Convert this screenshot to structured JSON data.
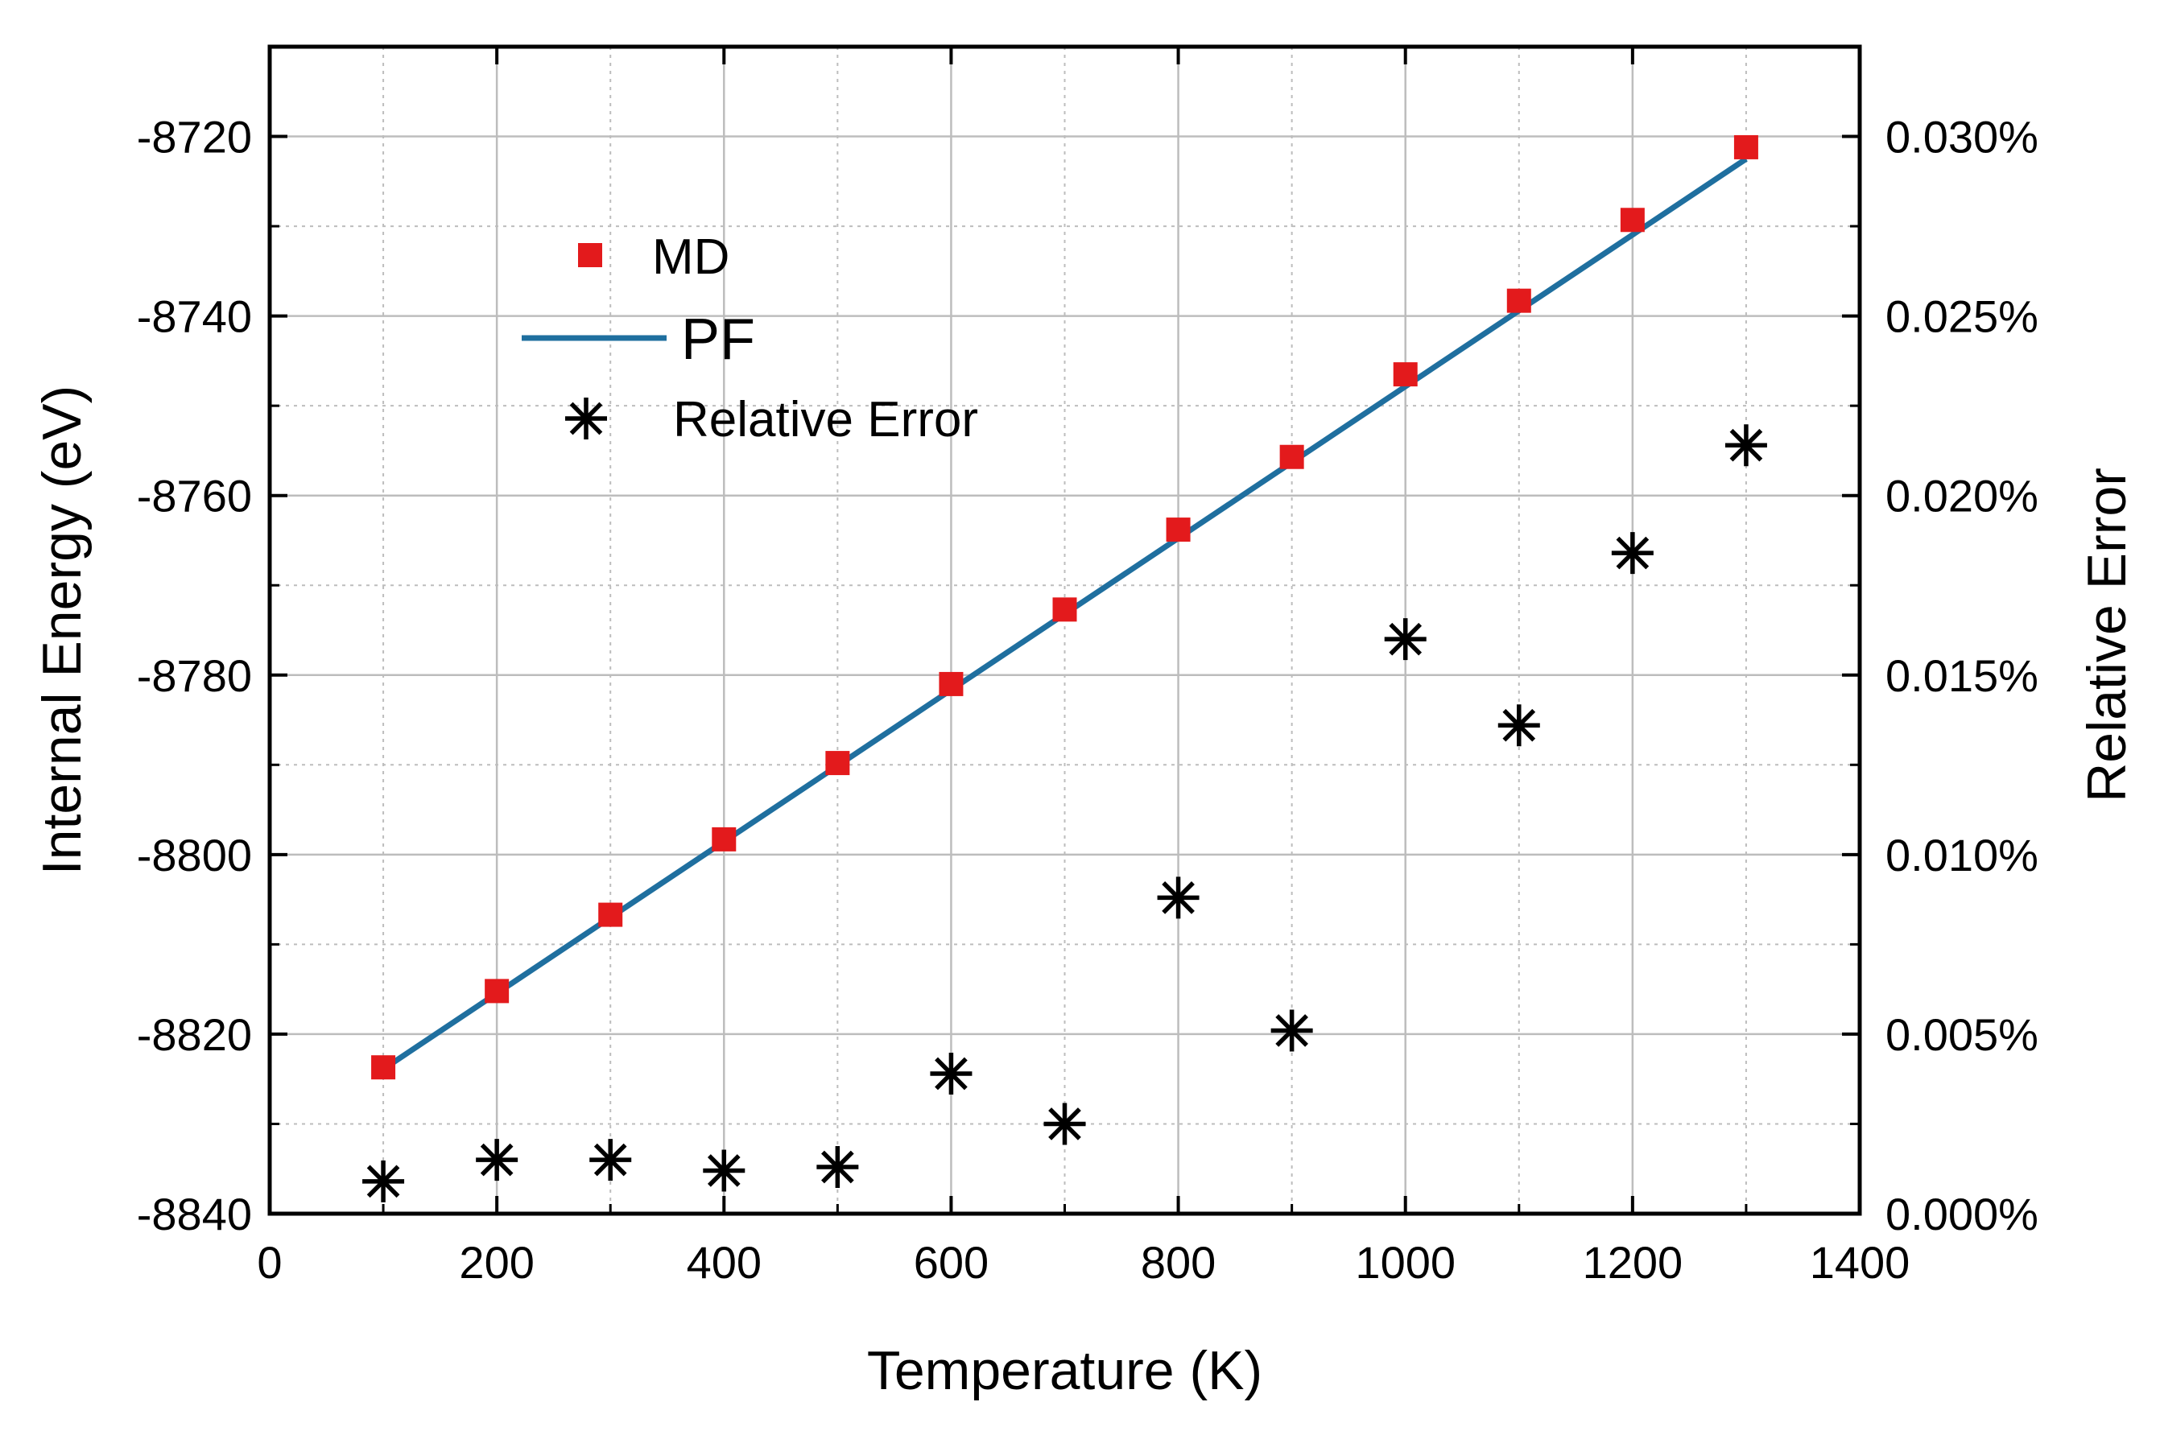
{
  "chart_data": {
    "type": "scatter",
    "title": "",
    "xlabel": "Temperature (K)",
    "ylabel_left": "Internal Energy (eV)",
    "ylabel_right": "Relative Error",
    "xlim": [
      0,
      1400
    ],
    "ylim_left": [
      -8840,
      -8710
    ],
    "ylim_right": [
      0,
      0.0325
    ],
    "x_ticks": [
      0,
      200,
      400,
      600,
      800,
      1000,
      1200,
      1400
    ],
    "x_tick_labels": [
      "0",
      "200",
      "400",
      "600",
      "800",
      "1000",
      "1200",
      "1400"
    ],
    "y_left_ticks": [
      -8720,
      -8740,
      -8760,
      -8780,
      -8800,
      -8820,
      -8840
    ],
    "y_left_tick_labels": [
      "-8720",
      "-8740",
      "-8760",
      "-8780",
      "-8800",
      "-8820",
      "-8840"
    ],
    "y_right_ticks": [
      0.03,
      0.025,
      0.02,
      0.015,
      0.01,
      0.005,
      0
    ],
    "y_right_tick_labels": [
      "0.030%",
      "0.025%",
      "0.020%",
      "0.015%",
      "0.010%",
      "0.005%",
      "0.000%"
    ],
    "grid": true,
    "legend_position": "top-left",
    "series": [
      {
        "name": "MD",
        "kind": "markers",
        "marker": "square",
        "color": "#e31a1c",
        "axis": "left",
        "x": [
          100,
          200,
          300,
          400,
          500,
          600,
          700,
          800,
          900,
          1000,
          1100,
          1200,
          1300
        ],
        "values": [
          -8823.7,
          -8815.2,
          -8806.7,
          -8798.3,
          -8789.8,
          -8781.0,
          -8772.7,
          -8763.8,
          -8755.7,
          -8746.5,
          -8738.3,
          -8729.3,
          -8721.2
        ]
      },
      {
        "name": "PF",
        "kind": "line",
        "color": "#1f6f9f",
        "axis": "left",
        "x": [
          100,
          1300
        ],
        "values": [
          -8823.9,
          -8722.5
        ]
      },
      {
        "name": "Relative Error",
        "kind": "markers",
        "marker": "asterisk",
        "color": "#000000",
        "axis": "right",
        "x": [
          100,
          200,
          300,
          400,
          500,
          600,
          700,
          800,
          900,
          1000,
          1100,
          1200,
          1300
        ],
        "values": [
          0.0009,
          0.0015,
          0.0015,
          0.0012,
          0.0013,
          0.0039,
          0.0025,
          0.0088,
          0.0051,
          0.016,
          0.0136,
          0.0184,
          0.0214
        ]
      }
    ]
  },
  "colors": {
    "md": "#e31a1c",
    "pf": "#1f6f9f",
    "error": "#000000",
    "grid": "#bdbdbd",
    "axis": "#000000"
  }
}
